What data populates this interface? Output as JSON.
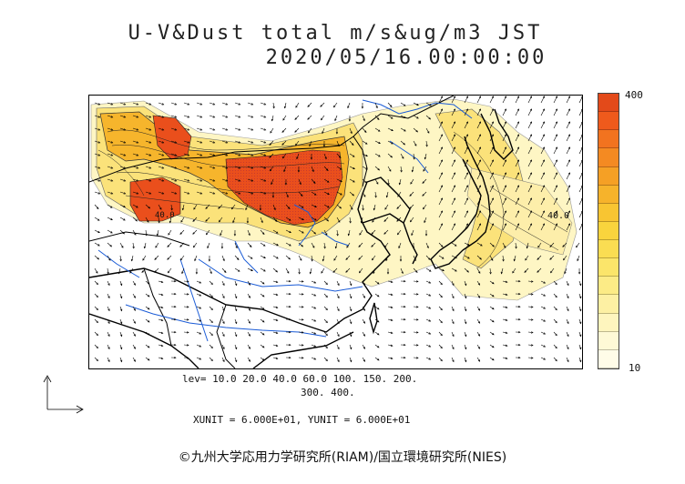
{
  "title": {
    "line1": "U-V&Dust total m/s&ug/m3 JST",
    "line2": "2020/05/16.00:00:00"
  },
  "colorbar": {
    "top_label": "400",
    "bottom_label": "10",
    "colors": [
      "#e34a1a",
      "#ef5a1c",
      "#f2731f",
      "#f48a22",
      "#f5a025",
      "#f6b32b",
      "#f8c532",
      "#f9d43d",
      "#fadd52",
      "#fbe56a",
      "#fceb86",
      "#fdf0a3",
      "#fef5be",
      "#fef9d6",
      "#fffce8"
    ]
  },
  "map_labels": {
    "contour_label_a": "40.0",
    "contour_label_b": "40.0"
  },
  "levels": {
    "line1": "lev= 10.0 20.0 40.0 60.0 100. 150. 200.",
    "line2": "300. 400."
  },
  "units": "XUNIT = 6.000E+01, YUNIT = 6.000E+01",
  "copyright": "©九州大学応用力学研究所(RIAM)/国立環境研究所(NIES)"
}
